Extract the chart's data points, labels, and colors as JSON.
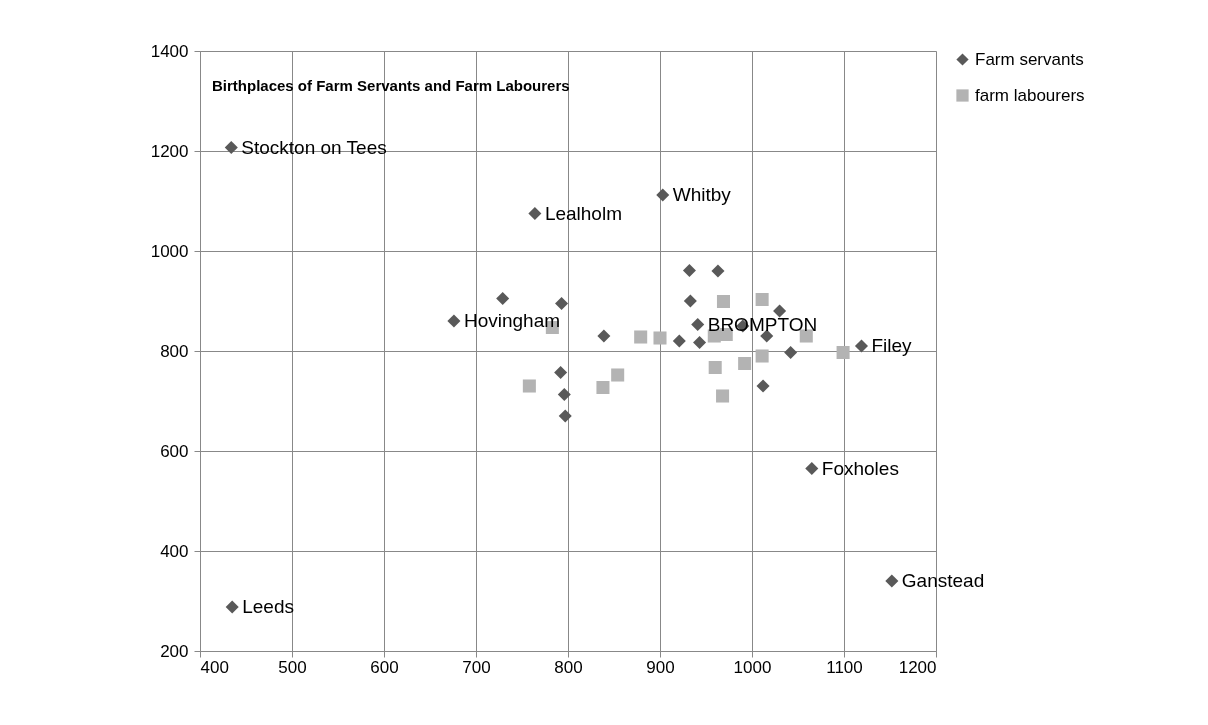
{
  "chart_data": {
    "type": "scatter",
    "title": "Birthplaces of Farm Servants and Farm Labourers",
    "xlim": [
      400,
      1200
    ],
    "xticks": [
      400,
      500,
      600,
      700,
      800,
      900,
      1000,
      1100,
      1200
    ],
    "ylim": [
      200,
      1400
    ],
    "yticks": [
      200,
      400,
      600,
      800,
      1000,
      1200,
      1400
    ],
    "grid": true,
    "legend": "right",
    "series": [
      {
        "name": "Farm servants",
        "color": "#595959",
        "marker": "diamond",
        "x": [
          434,
          764,
          903,
          676,
          729,
          793,
          839,
          932,
          933,
          963,
          921,
          941,
          943,
          990,
          1030,
          1016,
          1042,
          1119,
          792,
          796,
          797,
          1012,
          1065,
          1152,
          435
        ],
        "values": [
          1207,
          1075,
          1112,
          860,
          905,
          895,
          830,
          961,
          900,
          960,
          820,
          853,
          817,
          850,
          880,
          830,
          797,
          810,
          757,
          713,
          670,
          730,
          565,
          340,
          288
        ]
      },
      {
        "name": "farm labourers",
        "color": "#b3b3b3",
        "marker": "square",
        "x": [
          783,
          758,
          838,
          854,
          879,
          900,
          969,
          1011,
          959,
          972,
          1059,
          1011,
          992,
          960,
          968,
          1099
        ],
        "values": [
          847,
          730,
          727,
          752,
          828,
          826,
          899,
          903,
          830,
          833,
          830,
          790,
          775,
          767,
          710,
          797
        ]
      }
    ],
    "annotations": [
      {
        "text": "Stockton on Tees",
        "x": 434,
        "y": 1207
      },
      {
        "text": "Lealholm",
        "x": 764,
        "y": 1075
      },
      {
        "text": "Whitby",
        "x": 903,
        "y": 1112
      },
      {
        "text": "Hovingham",
        "x": 676,
        "y": 860
      },
      {
        "text": "BROMPTON",
        "x": 941,
        "y": 853
      },
      {
        "text": "Filey",
        "x": 1119,
        "y": 810
      },
      {
        "text": "Foxholes",
        "x": 1065,
        "y": 565
      },
      {
        "text": "Ganstead",
        "x": 1152,
        "y": 340
      },
      {
        "text": "Leeds",
        "x": 435,
        "y": 288
      }
    ]
  }
}
